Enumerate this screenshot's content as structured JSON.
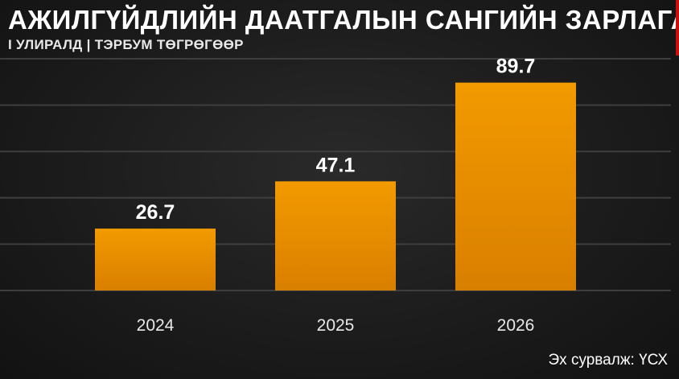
{
  "header": {
    "title": "АЖИЛГҮЙДЛИЙН ДААТГАЛЫН САНГИЙН ЗАРЛАГА",
    "subtitle": "I УЛИРАЛД | ТЭРБУМ ТӨГРӨГӨӨР"
  },
  "footer": {
    "source": "Эх сурвалж: ҮСХ"
  },
  "colors": {
    "bar": "#f29a00",
    "bar_dark": "#d97f00",
    "gridline": "#3e3e3e",
    "text": "#ffffff",
    "accent": "#c81010"
  },
  "chart_data": {
    "type": "bar",
    "title": "АЖИЛГҮЙДЛИЙН ДААТГАЛЫН САНГИЙН ЗАРЛАГА",
    "subtitle": "I УЛИРАЛД | ТЭРБУМ ТӨГРӨГӨӨР",
    "categories": [
      "2024",
      "2025",
      "2026"
    ],
    "values": [
      26.7,
      47.1,
      89.7
    ],
    "data_labels": [
      "26.7",
      "47.1",
      "89.7"
    ],
    "xlabel": "",
    "ylabel": "",
    "ylim": [
      0,
      100
    ],
    "grid": true,
    "y_tick_labels_shown": false,
    "legend": "none"
  }
}
